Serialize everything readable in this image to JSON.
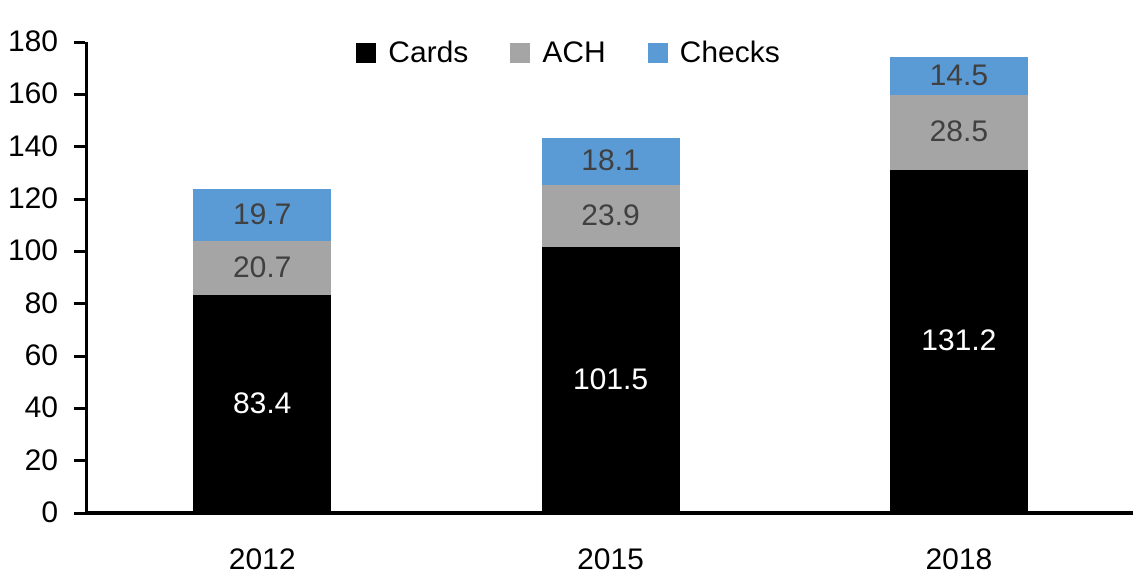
{
  "chart_data": {
    "type": "bar",
    "stacked": true,
    "title": "",
    "xlabel": "",
    "ylabel": "",
    "categories": [
      "2012",
      "2015",
      "2018"
    ],
    "series": [
      {
        "name": "Cards",
        "color": "#000000",
        "label_color": "#ffffff",
        "values": [
          83.4,
          101.5,
          131.2
        ]
      },
      {
        "name": "ACH",
        "color": "#a5a5a5",
        "label_color": "#404040",
        "values": [
          20.7,
          23.9,
          28.5
        ]
      },
      {
        "name": "Checks",
        "color": "#5b9bd5",
        "label_color": "#404040",
        "values": [
          19.7,
          18.1,
          14.5
        ]
      }
    ],
    "ylim": [
      0,
      180
    ],
    "yticks": [
      0,
      20,
      40,
      60,
      80,
      100,
      120,
      140,
      160,
      180
    ],
    "grid": false,
    "legend_position": "top-center",
    "data_labels": true,
    "axis_color": "#000000"
  }
}
